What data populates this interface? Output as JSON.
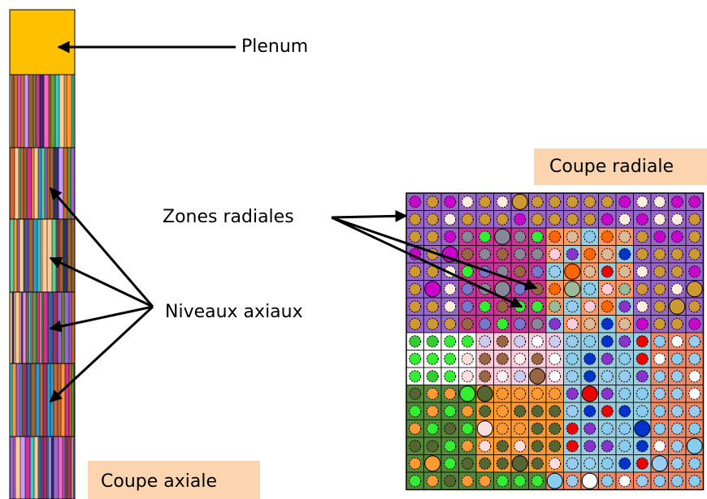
{
  "labels": {
    "plenum": "Plenum",
    "radial_section": "Coupe radiale",
    "radial_zones": "Zones radiales",
    "axial_levels": "Niveaux axiaux",
    "axial_section": "Coupe axiale"
  }
}
